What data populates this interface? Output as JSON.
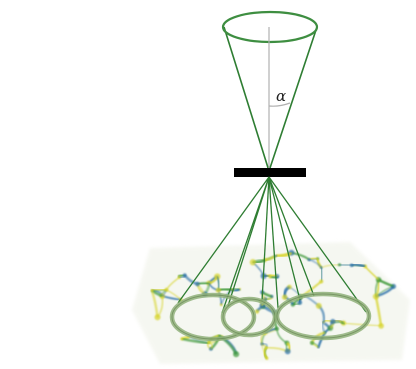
{
  "figure": {
    "angle_label": "α"
  },
  "colors": {
    "cone": "#2e7d32",
    "cone_light": "#4caf50",
    "axis": "#b0b0b0",
    "plate": "#000000",
    "ring": "#7a9a62",
    "pattern_yellow": "#d7d42a",
    "pattern_green": "#3f9a3a",
    "pattern_blue": "#2a6fa8"
  },
  "icons": {
    "aperture": "black-plate"
  }
}
